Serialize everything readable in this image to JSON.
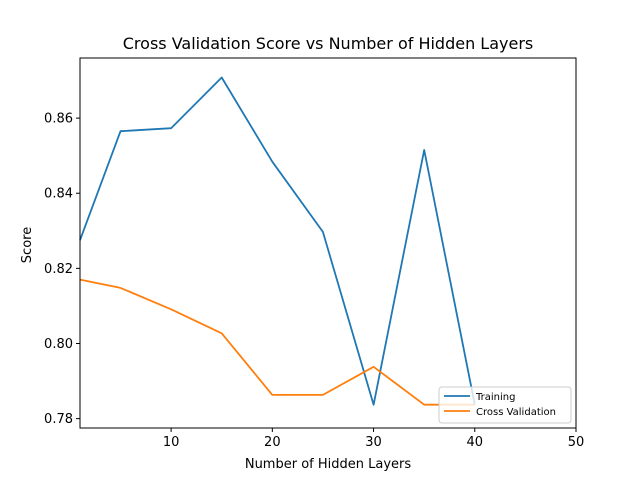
{
  "chart_data": {
    "type": "line",
    "title": "Cross Validation Score vs Number of Hidden Layers",
    "xlabel": "Number of Hidden Layers",
    "ylabel": "Score",
    "xlim": [
      1,
      50
    ],
    "ylim": [
      0.7775,
      0.876
    ],
    "xticks": [
      10,
      20,
      30,
      40,
      50
    ],
    "yticks": [
      0.78,
      0.8,
      0.82,
      0.84,
      0.86
    ],
    "xtick_labels": [
      "10",
      "20",
      "30",
      "40",
      "50"
    ],
    "ytick_labels": [
      "0.78",
      "0.80",
      "0.82",
      "0.84",
      "0.86"
    ],
    "grid": false,
    "legend_position": "lower-right",
    "series": [
      {
        "name": "Training",
        "color": "#1f77b4",
        "x": [
          1,
          5,
          10,
          15,
          20,
          25,
          30,
          35,
          40
        ],
        "y": [
          0.8275,
          0.8565,
          0.8573,
          0.8708,
          0.8484,
          0.8297,
          0.7837,
          0.8515,
          0.7837
        ]
      },
      {
        "name": "Cross Validation",
        "color": "#ff7f0e",
        "x": [
          1,
          5,
          10,
          15,
          20,
          25,
          30,
          35,
          40
        ],
        "y": [
          0.817,
          0.8148,
          0.8091,
          0.8027,
          0.7863,
          0.7863,
          0.7938,
          0.7837,
          0.7837
        ]
      }
    ]
  }
}
